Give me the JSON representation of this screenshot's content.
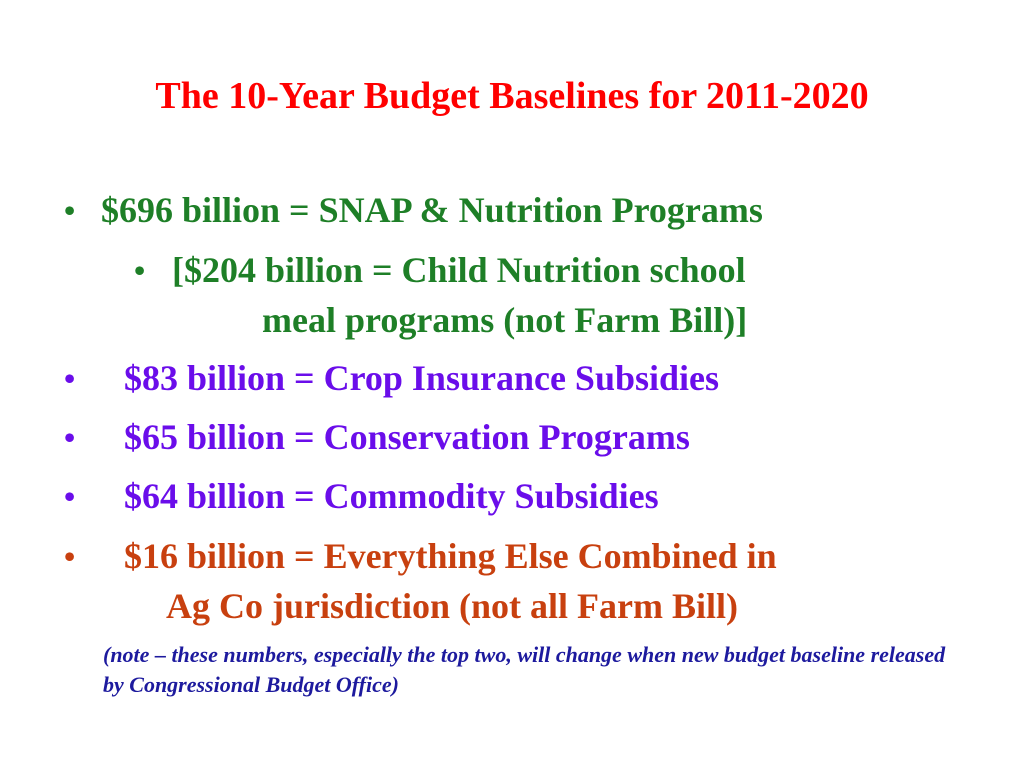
{
  "colors": {
    "title": "#ff0000",
    "nutrition": "#1e7f27",
    "subsidy": "#6a0dea",
    "other": "#c8400f",
    "note": "#1d1a9e"
  },
  "bullet_glyph": "•",
  "title": "The 10-Year Budget Baselines for 2011-2020",
  "items": [
    {
      "text": "$696 billion = SNAP & Nutrition Programs"
    },
    {
      "line1": "[$204 billion = Child Nutrition school",
      "line2": "meal programs (not Farm Bill)]"
    },
    {
      "text": "$83 billion = Crop Insurance Subsidies"
    },
    {
      "text": "$65 billion = Conservation Programs"
    },
    {
      "text": "$64 billion = Commodity Subsidies"
    },
    {
      "line1": "$16 billion = Everything Else Combined in",
      "line2": "Ag Co jurisdiction (not all Farm Bill)"
    }
  ],
  "note": "(note – these numbers, especially the top two, will change when new budget baseline released by Congressional Budget Office)"
}
